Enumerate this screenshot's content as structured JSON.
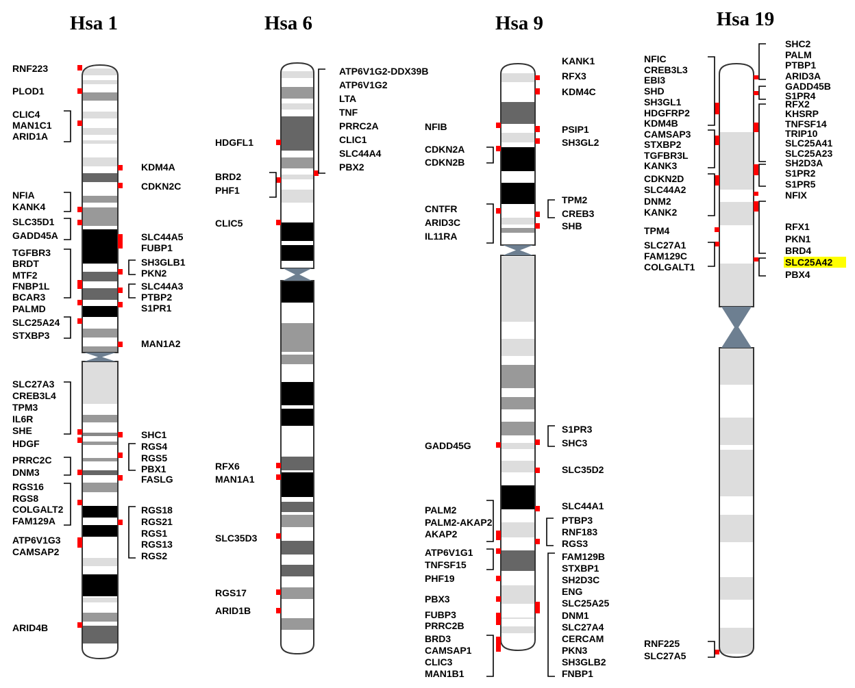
{
  "highlight_color": "#ffff00",
  "marker_color": "#ff0000",
  "centromere_color": "#6d7f91",
  "chromosomes": [
    {
      "title": "Hsa 1",
      "left_groups": [
        {
          "genes": [
            "RNF223"
          ]
        },
        {
          "genes": [
            "PLOD1"
          ]
        },
        {
          "genes": [
            "CLIC4",
            "MAN1C1",
            "ARID1A"
          ]
        },
        {
          "genes": [
            "NFIA",
            "KANK4"
          ]
        },
        {
          "genes": [
            "SLC35D1",
            "GADD45A"
          ]
        },
        {
          "genes": [
            "TGFBR3",
            "BRDT",
            "MTF2",
            "FNBP1L",
            "BCAR3"
          ]
        },
        {
          "genes": [
            "PALMD"
          ]
        },
        {
          "genes": [
            "SLC25A24",
            "STXBP3"
          ]
        },
        {
          "genes": [
            "SLC27A3",
            "CREB3L4",
            "TPM3",
            "IL6R",
            "SHE"
          ]
        },
        {
          "genes": [
            "HDGF"
          ]
        },
        {
          "genes": [
            "PRRC2C",
            "DNM3"
          ]
        },
        {
          "genes": [
            "RGS16",
            "RGS8",
            "COLGALT2",
            "FAM129A"
          ]
        },
        {
          "genes": [
            "ATP6V1G3",
            "CAMSAP2"
          ]
        },
        {
          "genes": [
            "ARID4B"
          ]
        }
      ],
      "right_groups": [
        {
          "genes": [
            "KDM4A"
          ]
        },
        {
          "genes": [
            "CDKN2C"
          ]
        },
        {
          "genes": [
            "SLC44A5",
            "FUBP1"
          ]
        },
        {
          "genes": [
            "SH3GLB1",
            "PKN2"
          ]
        },
        {
          "genes": [
            "SLC44A3",
            "PTBP2"
          ]
        },
        {
          "genes": [
            "S1PR1"
          ]
        },
        {
          "genes": [
            "MAN1A2"
          ]
        },
        {
          "genes": [
            "SHC1"
          ]
        },
        {
          "genes": [
            "RGS4",
            "RGS5",
            "PBX1"
          ]
        },
        {
          "genes": [
            "FASLG"
          ]
        },
        {
          "genes": [
            "RGS18",
            "RGS21",
            "RGS1",
            "RGS13",
            "RGS2"
          ]
        }
      ]
    },
    {
      "title": "Hsa 6",
      "left_groups": [
        {
          "genes": [
            "HDGFL1"
          ]
        },
        {
          "genes": [
            "BRD2",
            "PHF1"
          ]
        },
        {
          "genes": [
            "CLIC5"
          ]
        },
        {
          "genes": [
            "RFX6"
          ]
        },
        {
          "genes": [
            "MAN1A1"
          ]
        },
        {
          "genes": [
            "SLC35D3"
          ]
        },
        {
          "genes": [
            "RGS17"
          ]
        },
        {
          "genes": [
            "ARID1B"
          ]
        }
      ],
      "right_groups": [
        {
          "genes": [
            "ATP6V1G2-DDX39B",
            "ATP6V1G2",
            "LTA",
            "TNF",
            "PRRC2A",
            "CLIC1",
            "SLC44A4",
            "PBX2"
          ]
        }
      ]
    },
    {
      "title": "Hsa 9",
      "left_groups": [
        {
          "genes": [
            "NFIB"
          ]
        },
        {
          "genes": [
            "CDKN2A",
            "CDKN2B"
          ]
        },
        {
          "genes": [
            "CNTFR",
            "ARID3C",
            "IL11RA"
          ]
        },
        {
          "genes": [
            "GADD45G"
          ]
        },
        {
          "genes": [
            "PALM2",
            "PALM2-AKAP2",
            "AKAP2"
          ]
        },
        {
          "genes": [
            "ATP6V1G1",
            "TNFSF15"
          ]
        },
        {
          "genes": [
            "PHF19"
          ]
        },
        {
          "genes": [
            "PBX3"
          ]
        },
        {
          "genes": [
            "FUBP3",
            "PRRC2B"
          ]
        },
        {
          "genes": [
            "BRD3",
            "CAMSAP1",
            "CLIC3",
            "MAN1B1"
          ]
        }
      ],
      "right_groups": [
        {
          "genes": [
            "KANK1"
          ]
        },
        {
          "genes": [
            "RFX3"
          ]
        },
        {
          "genes": [
            "KDM4C"
          ]
        },
        {
          "genes": [
            "PSIP1",
            "SH3GL2"
          ]
        },
        {
          "genes": [
            "TPM2",
            "CREB3"
          ]
        },
        {
          "genes": [
            "SHB"
          ]
        },
        {
          "genes": [
            "S1PR3",
            "SHC3"
          ]
        },
        {
          "genes": [
            "SLC35D2"
          ]
        },
        {
          "genes": [
            "SLC44A1"
          ]
        },
        {
          "genes": [
            "PTBP3",
            "RNF183",
            "RGS3"
          ]
        },
        {
          "genes": [
            "FAM129B",
            "STXBP1",
            "SH2D3C",
            "ENG",
            "SLC25A25",
            "DNM1",
            "SLC27A4",
            "CERCAM",
            "PKN3",
            "SH3GLB2",
            "FNBP1"
          ]
        }
      ]
    },
    {
      "title": "Hsa 19",
      "left_groups": [
        {
          "genes": [
            "NFIC",
            "CREB3L3",
            "EBI3",
            "SHD",
            "SH3GL1",
            "HDGFRP2",
            "KDM4B"
          ]
        },
        {
          "genes": [
            "CAMSAP3",
            "STXBP2",
            "TGFBR3L",
            "KANK3"
          ]
        },
        {
          "genes": [
            "CDKN2D",
            "SLC44A2",
            "DNM2",
            "KANK2"
          ]
        },
        {
          "genes": [
            "TPM4"
          ]
        },
        {
          "genes": [
            "SLC27A1",
            "FAM129C",
            "COLGALT1"
          ]
        },
        {
          "genes": [
            "RNF225",
            "SLC27A5"
          ]
        }
      ],
      "right_groups": [
        {
          "genes": [
            "SHC2",
            "PALM",
            "PTBP1",
            "ARID3A"
          ]
        },
        {
          "genes": [
            "GADD45B",
            "S1PR4"
          ]
        },
        {
          "genes": [
            "RFX2",
            "KHSRP",
            "TNFSF14",
            "TRIP10",
            "SLC25A41",
            "SLC25A23",
            "SH2D3A"
          ]
        },
        {
          "genes": [
            "S1PR2",
            "S1PR5"
          ]
        },
        {
          "genes": [
            "NFIX"
          ]
        },
        {
          "genes": [
            "RFX1",
            "PKN1",
            "BRD4"
          ]
        },
        {
          "genes": [
            "SLC25A42",
            "PBX4"
          ],
          "highlighted": [
            "SLC25A42"
          ]
        }
      ]
    }
  ]
}
